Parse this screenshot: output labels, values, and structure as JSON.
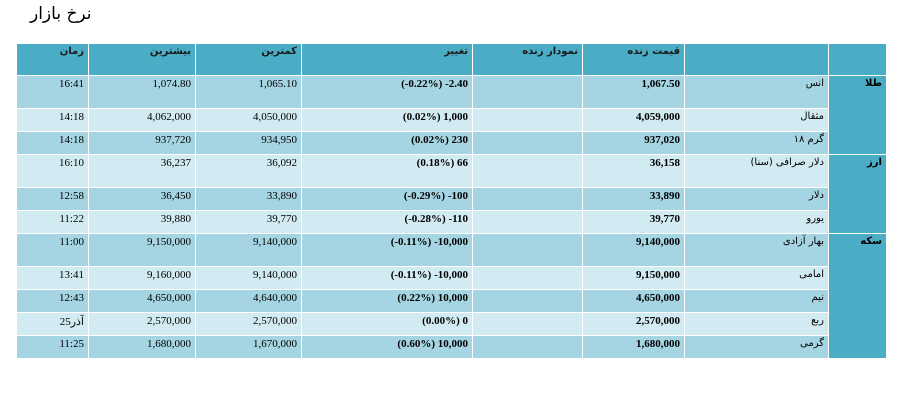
{
  "header": {
    "title": "نرخ بازار"
  },
  "table": {
    "columns": [
      "قیمت زنده",
      "نمودار زنده",
      "تغییر",
      "کمترین",
      "بیشترین",
      "زمان"
    ],
    "groups": [
      {
        "name": "طلا",
        "rows": [
          {
            "name": "انس",
            "price": "1,067.50",
            "change": "(-0.22%) -2.40",
            "low": "1,065.10",
            "high": "1,074.80",
            "time": "16:41"
          },
          {
            "name": "مثقال",
            "price": "4,059,000",
            "change": "(0.02%) 1,000",
            "low": "4,050,000",
            "high": "4,062,000",
            "time": "14:18"
          },
          {
            "name": "گرم ۱۸",
            "price": "937,020",
            "change": "(0.02%) 230",
            "low": "934,950",
            "high": "937,720",
            "time": "14:18"
          }
        ]
      },
      {
        "name": "ارز",
        "rows": [
          {
            "name": "دلار صرافی (سنا)",
            "price": "36,158",
            "change": "(0.18%) 66",
            "low": "36,092",
            "high": "36,237",
            "time": "16:10"
          },
          {
            "name": "دلار",
            "price": "33,890",
            "change": "(-0.29%) -100",
            "low": "33,890",
            "high": "36,450",
            "time": "12:58"
          },
          {
            "name": "یورو",
            "price": "39,770",
            "change": "(-0.28%) -110",
            "low": "39,770",
            "high": "39,880",
            "time": "11:22"
          }
        ]
      },
      {
        "name": "سکه",
        "rows": [
          {
            "name": "بهار آزادی",
            "price": "9,140,000",
            "change": "(-0.11%) -10,000",
            "low": "9,140,000",
            "high": "9,150,000",
            "time": "11:00"
          },
          {
            "name": "امامی",
            "price": "9,150,000",
            "change": "(-0.11%) -10,000",
            "low": "9,140,000",
            "high": "9,160,000",
            "time": "13:41"
          },
          {
            "name": "نیم",
            "price": "4,650,000",
            "change": "(0.22%) 10,000",
            "low": "4,640,000",
            "high": "4,650,000",
            "time": "12:43"
          },
          {
            "name": "ربع",
            "price": "2,570,000",
            "change": "(0.00%) 0",
            "low": "2,570,000",
            "high": "2,570,000",
            "time": "25آذر"
          },
          {
            "name": "گرمی",
            "price": "1,680,000",
            "change": "(0.60%) 10,000",
            "low": "1,670,000",
            "high": "1,680,000",
            "time": "11:25"
          }
        ]
      }
    ]
  }
}
